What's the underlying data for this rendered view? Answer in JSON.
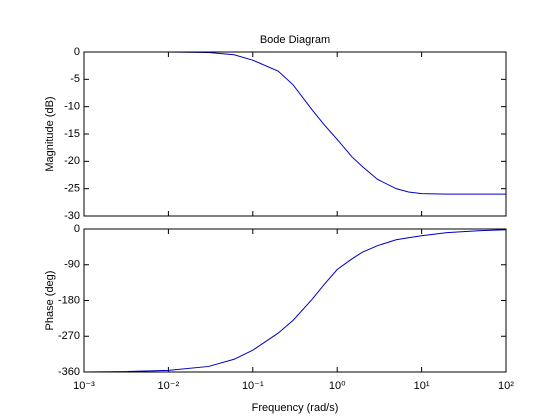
{
  "chart_data": [
    {
      "type": "line",
      "title": "Bode Diagram",
      "ylabel": "Magnitude (dB)",
      "xscale": "log",
      "xlim": [
        0.001,
        100
      ],
      "xticks": [
        0.001,
        0.01,
        0.1,
        1,
        10,
        100
      ],
      "ylim": [
        -30,
        0
      ],
      "yticks": [
        0,
        -5,
        -10,
        -15,
        -20,
        -25,
        -30
      ],
      "series": [
        {
          "color": "#0000c0",
          "x": [
            0.001,
            0.01,
            0.03,
            0.06,
            0.1,
            0.2,
            0.3,
            0.5,
            0.7,
            1,
            1.5,
            2,
            3,
            5,
            7,
            10,
            20,
            50,
            100
          ],
          "values": [
            0,
            0,
            -0.1,
            -0.5,
            -1.5,
            -3.5,
            -6,
            -10.5,
            -13.3,
            -16,
            -19.2,
            -21,
            -23.3,
            -25,
            -25.6,
            -25.9,
            -26,
            -26,
            -26
          ]
        }
      ]
    },
    {
      "type": "line",
      "xlabel": "Frequency  (rad/s)",
      "ylabel": "Phase (deg)",
      "xscale": "log",
      "xlim": [
        0.001,
        100
      ],
      "xticks": [
        {
          "value": 0.001,
          "label": "10⁻³"
        },
        {
          "value": 0.01,
          "label": "10⁻²"
        },
        {
          "value": 0.1,
          "label": "10⁻¹"
        },
        {
          "value": 1,
          "label": "10⁰"
        },
        {
          "value": 10,
          "label": "10¹"
        },
        {
          "value": 100,
          "label": "10²"
        }
      ],
      "ylim": [
        -360,
        0
      ],
      "yticks": [
        0,
        -90,
        -180,
        -270,
        -360
      ],
      "series": [
        {
          "color": "#0000c0",
          "x": [
            0.001,
            0.003,
            0.01,
            0.03,
            0.06,
            0.1,
            0.2,
            0.3,
            0.5,
            0.7,
            1,
            1.5,
            2,
            3,
            5,
            7,
            10,
            20,
            50,
            100
          ],
          "values": [
            -360,
            -359,
            -356,
            -346,
            -328,
            -305,
            -262,
            -230,
            -178,
            -140,
            -102,
            -75,
            -58,
            -42,
            -27,
            -22,
            -17,
            -9,
            -4,
            -2
          ]
        }
      ]
    }
  ]
}
